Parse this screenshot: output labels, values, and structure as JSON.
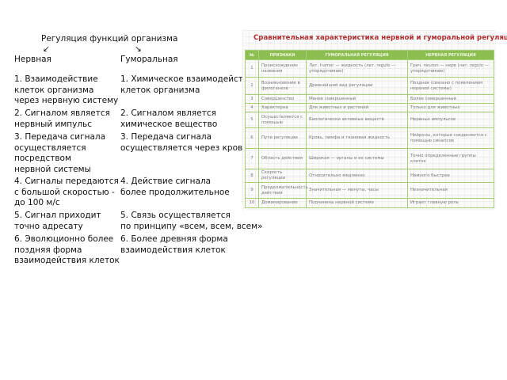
{
  "slide": {
    "title": "Регуляция функций организма",
    "arrow_left": "↙",
    "arrow_right": "↘",
    "columns": [
      {
        "heading": "Нервная",
        "items": [
          "1. Взаимодействие\nклеток организма\nчерез нервную систему",
          "2. Сигналом является\nнервный импульс",
          "3. Передача сигнала\nосуществляется\nпосредством\nнервной системы",
          "4. Сигналы передаются\nс большой скоростью -\n до 100 м/с",
          "5. Сигнал приходит\nточно адресату",
          "6. Эволюционно более\nпоздняя форма\nвзаимодействия клеток"
        ]
      },
      {
        "heading": "Гуморальная",
        "items": [
          "1. Химическое взаимодействие\nклеток организма",
          "2. Сигналом является\nхимическое вещество",
          "3. Передача сигнала\nосуществляется через кровь",
          "4. Действие сигнала\n более продолжительное",
          "5. Связь осуществляется\nпо принципу «всем, всем, всем»",
          "6. Более древняя форма\nвзаимодействия клеток"
        ]
      }
    ]
  },
  "table": {
    "title": "Сравнительная характеристика нервной и гуморальной регуляции",
    "headers": [
      "№",
      "Признаки",
      "Гуморальная регуляция",
      "Нервная регуляция"
    ],
    "rows": [
      [
        "1",
        "Происхождение названия",
        "Лат. humor — жидкость (лат. regulo — упорядочиваю)",
        "Греч. neuron — нерв (лат. regulo — упорядочиваю)"
      ],
      [
        "2",
        "Возникновение в филогенезе",
        "Древнейший вид регуляции",
        "Позднее (связано с появлением нервной системы)"
      ],
      [
        "3",
        "Совершенство",
        "Менее совершенный",
        "Более совершенный"
      ],
      [
        "4",
        "Характерна",
        "Для животных и растений",
        "Только для животных"
      ],
      [
        "5",
        "Осуществляется с помощью",
        "Биологически активных веществ",
        "Нервных импульсов"
      ],
      [
        "6",
        "Пути регуляции",
        "Кровь, лимфа и тканевая жидкость",
        "Нейроны, которые соединяются с помощью синапсов"
      ],
      [
        "7",
        "Область действия",
        "Широкая — органы и их системы",
        "Точно определенные группы клеток"
      ],
      [
        "8",
        "Скорость регуляции",
        "Относительно медленно",
        "Намного быстрее"
      ],
      [
        "9",
        "Продолжительность действия",
        "Значительная — минуты, часы",
        "Незначительная"
      ],
      [
        "10",
        "Доминирование",
        "Подчинена нервной системе",
        "Играет главную роль"
      ]
    ]
  }
}
